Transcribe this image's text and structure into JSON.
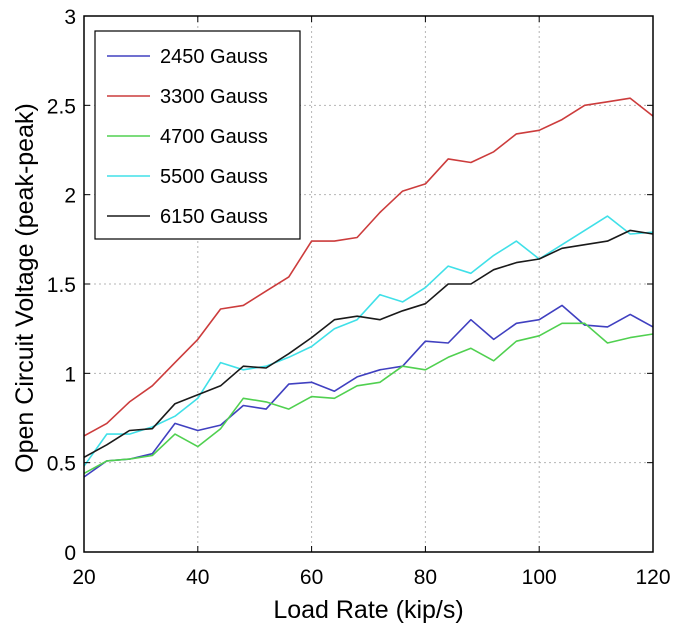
{
  "chart_data": {
    "type": "line",
    "xlabel": "Load Rate (kip/s)",
    "ylabel": "Open Circuit Voltage (peak-peak)",
    "xlim": [
      20,
      120
    ],
    "ylim": [
      0,
      3
    ],
    "xticks": [
      20,
      40,
      60,
      80,
      100,
      120
    ],
    "yticks": [
      0,
      0.5,
      1,
      1.5,
      2,
      2.5,
      3
    ],
    "xtick_labels": [
      "20",
      "40",
      "60",
      "80",
      "100",
      "120"
    ],
    "ytick_labels": [
      "0",
      "0.5",
      "1",
      "1.5",
      "2",
      "2.5",
      "3"
    ],
    "grid": true,
    "legend_position": "top-left",
    "x": [
      20,
      24,
      28,
      32,
      36,
      40,
      44,
      48,
      52,
      56,
      60,
      64,
      68,
      72,
      76,
      80,
      84,
      88,
      92,
      96,
      100,
      104,
      108,
      112,
      116,
      120
    ],
    "series": [
      {
        "name": "2450 Gauss",
        "color": "#4040c0",
        "values": [
          0.42,
          0.51,
          0.52,
          0.55,
          0.72,
          0.68,
          0.71,
          0.82,
          0.8,
          0.94,
          0.95,
          0.9,
          0.98,
          1.02,
          1.04,
          1.18,
          1.17,
          1.3,
          1.19,
          1.28,
          1.3,
          1.38,
          1.27,
          1.26,
          1.33,
          1.26
        ]
      },
      {
        "name": "3300 Gauss",
        "color": "#cc3c3c",
        "values": [
          0.65,
          0.72,
          0.84,
          0.93,
          1.06,
          1.19,
          1.36,
          1.38,
          1.46,
          1.54,
          1.74,
          1.74,
          1.76,
          1.9,
          2.02,
          2.06,
          2.2,
          2.18,
          2.24,
          2.34,
          2.36,
          2.42,
          2.5,
          2.52,
          2.54,
          2.44
        ]
      },
      {
        "name": "4700 Gauss",
        "color": "#50d050",
        "values": [
          0.44,
          0.51,
          0.52,
          0.54,
          0.66,
          0.59,
          0.69,
          0.86,
          0.84,
          0.8,
          0.87,
          0.86,
          0.93,
          0.95,
          1.04,
          1.02,
          1.09,
          1.14,
          1.07,
          1.18,
          1.21,
          1.28,
          1.28,
          1.17,
          1.2,
          1.22
        ]
      },
      {
        "name": "5500 Gauss",
        "color": "#40e0e8",
        "values": [
          0.48,
          0.66,
          0.66,
          0.7,
          0.76,
          0.86,
          1.06,
          1.02,
          1.04,
          1.09,
          1.15,
          1.25,
          1.3,
          1.44,
          1.4,
          1.48,
          1.6,
          1.56,
          1.66,
          1.74,
          1.64,
          1.72,
          1.8,
          1.88,
          1.78,
          1.79
        ]
      },
      {
        "name": "6150 Gauss",
        "color": "#1a1a1a",
        "values": [
          0.53,
          0.6,
          0.68,
          0.69,
          0.83,
          0.88,
          0.93,
          1.04,
          1.03,
          1.11,
          1.2,
          1.3,
          1.32,
          1.3,
          1.35,
          1.39,
          1.5,
          1.5,
          1.58,
          1.62,
          1.64,
          1.7,
          1.72,
          1.74,
          1.8,
          1.78
        ]
      }
    ]
  }
}
